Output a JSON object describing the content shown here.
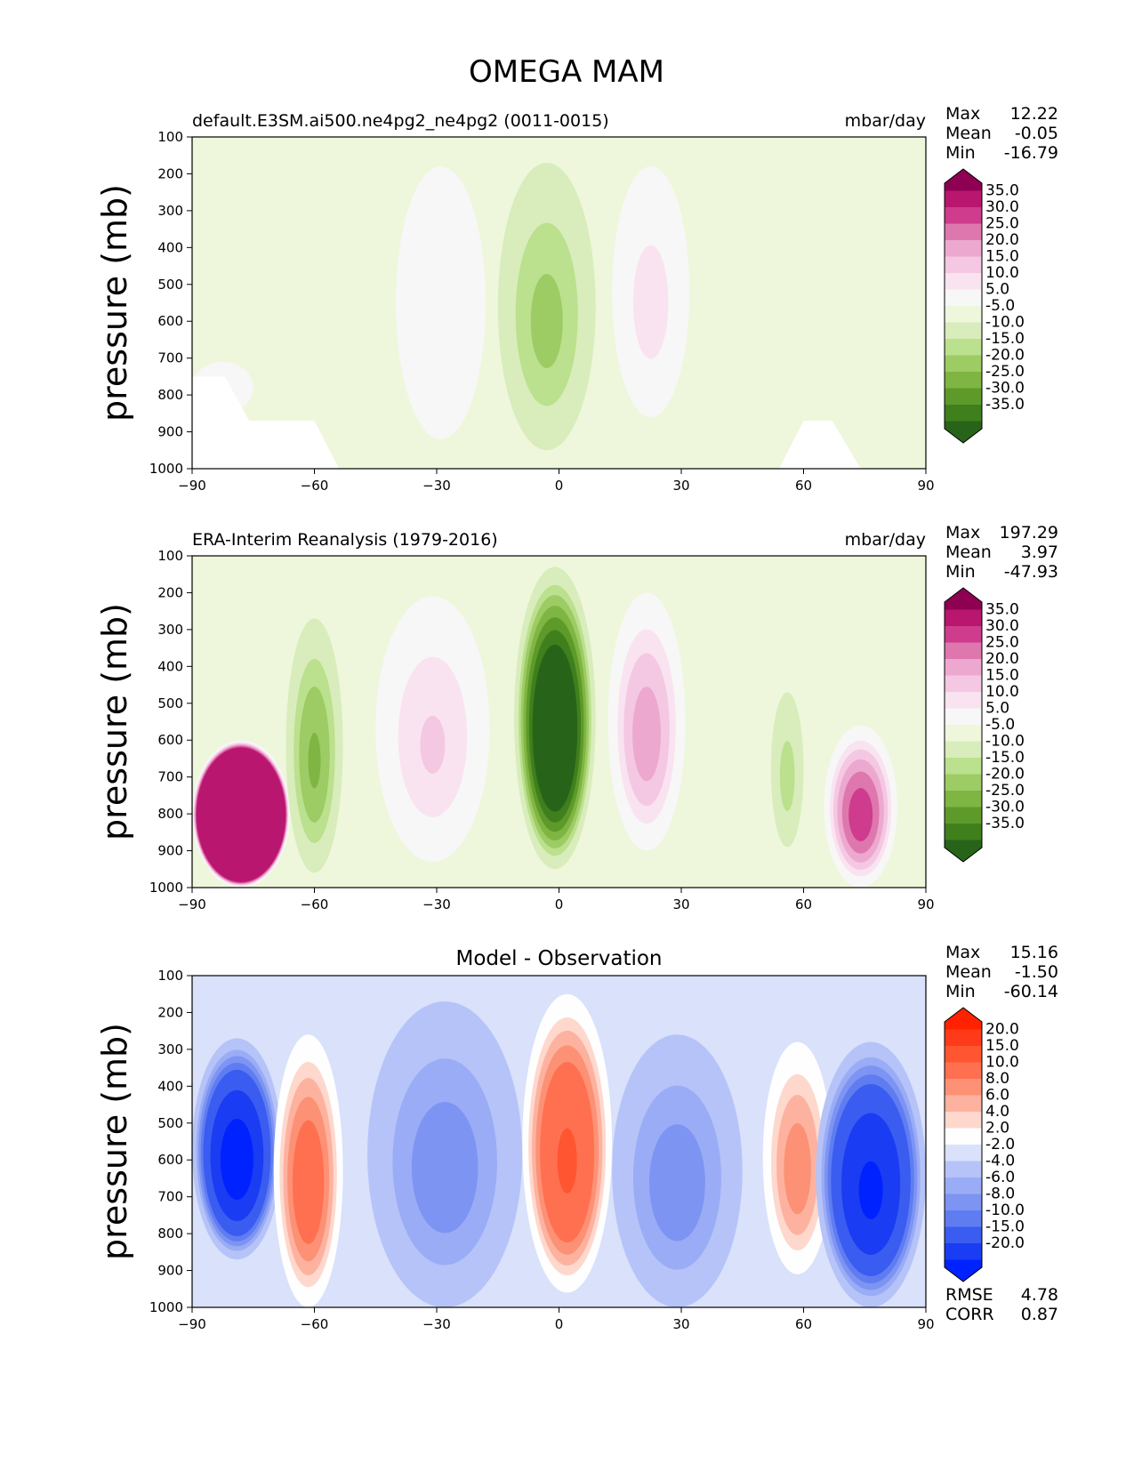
{
  "figure_title": "OMEGA MAM",
  "chart_data": [
    {
      "type": "contour",
      "title": "default.E3SM.ai500.ne4pg2_ne4pg2 (0011-0015)",
      "units": "mbar/day",
      "ylabel": "pressure (mb)",
      "xlim": [
        -90,
        90
      ],
      "ylim": [
        1000,
        100
      ],
      "xticks": [
        "−90",
        "−60",
        "−30",
        "0",
        "30",
        "60",
        "90"
      ],
      "yticks": [
        "100",
        "200",
        "300",
        "400",
        "500",
        "600",
        "700",
        "800",
        "900",
        "1000"
      ],
      "stats": [
        {
          "label": "Max",
          "value": "12.22"
        },
        {
          "label": "Mean",
          "value": "-0.05"
        },
        {
          "label": "Min",
          "value": "-16.79"
        }
      ],
      "colorbar_levels": [
        "35.0",
        "30.0",
        "25.0",
        "20.0",
        "15.0",
        "10.0",
        "5.0",
        "-5.0",
        "-10.0",
        "-15.0",
        "-20.0",
        "-25.0",
        "-30.0",
        "-35.0"
      ],
      "colorbar_colors": [
        "#8e0152",
        "#b8166f",
        "#cf3b8d",
        "#de77ae",
        "#eda8d0",
        "#f4c8e2",
        "#fae3f0",
        "#f7f7f7",
        "#eef7dc",
        "#d8edbb",
        "#bbe08e",
        "#9dcb64",
        "#7fb542",
        "#5e9a2a",
        "#3f7f1c",
        "#276419"
      ],
      "fields": [
        {
          "name": "subsidence-20S",
          "lon_range": [
            -40,
            -18
          ],
          "p_range": [
            180,
            920
          ],
          "peak": 9
        },
        {
          "name": "ascent-equator",
          "lon_range": [
            -15,
            9
          ],
          "p_range": [
            170,
            950
          ],
          "peak": -16
        },
        {
          "name": "subsidence-20N",
          "lon_range": [
            13,
            32
          ],
          "p_range": [
            180,
            860
          ],
          "peak": 12
        },
        {
          "name": "subsidence-SH-high-lat",
          "lon_range": [
            -90,
            -75
          ],
          "p_range": [
            710,
            850
          ],
          "peak": 6
        }
      ],
      "masked_topography": [
        {
          "lon": [
            -90,
            -82,
            -76,
            -60,
            -54
          ],
          "p": [
            750,
            750,
            870,
            870,
            1000
          ]
        },
        {
          "lon": [
            54,
            60,
            67,
            74
          ],
          "p": [
            1000,
            870,
            870,
            1000
          ]
        }
      ]
    },
    {
      "type": "contour",
      "title": "ERA-Interim Reanalysis (1979-2016)",
      "units": "mbar/day",
      "ylabel": "pressure (mb)",
      "xlim": [
        -90,
        90
      ],
      "ylim": [
        1000,
        100
      ],
      "xticks": [
        "−90",
        "−60",
        "−30",
        "0",
        "30",
        "60",
        "90"
      ],
      "yticks": [
        "100",
        "200",
        "300",
        "400",
        "500",
        "600",
        "700",
        "800",
        "900",
        "1000"
      ],
      "stats": [
        {
          "label": "Max",
          "value": "197.29"
        },
        {
          "label": "Mean",
          "value": "3.97"
        },
        {
          "label": "Min",
          "value": "-47.93"
        }
      ],
      "colorbar_levels": [
        "35.0",
        "30.0",
        "25.0",
        "20.0",
        "15.0",
        "10.0",
        "5.0",
        "-5.0",
        "-10.0",
        "-15.0",
        "-20.0",
        "-25.0",
        "-30.0",
        "-35.0"
      ],
      "colorbar_colors": [
        "#8e0152",
        "#b8166f",
        "#cf3b8d",
        "#de77ae",
        "#eda8d0",
        "#f4c8e2",
        "#fae3f0",
        "#f7f7f7",
        "#eef7dc",
        "#d8edbb",
        "#bbe08e",
        "#9dcb64",
        "#7fb542",
        "#5e9a2a",
        "#3f7f1c",
        "#276419"
      ],
      "fields": [
        {
          "name": "antarctic-subsidence",
          "lon_range": [
            -90,
            -66
          ],
          "p_range": [
            600,
            1000
          ],
          "peak": 197
        },
        {
          "name": "ascent-60S",
          "lon_range": [
            -67,
            -53
          ],
          "p_range": [
            270,
            960
          ],
          "peak": -20
        },
        {
          "name": "subsidence-25S",
          "lon_range": [
            -45,
            -17
          ],
          "p_range": [
            210,
            930
          ],
          "peak": 15
        },
        {
          "name": "ascent-equator",
          "lon_range": [
            -11,
            9
          ],
          "p_range": [
            130,
            950
          ],
          "peak": -48
        },
        {
          "name": "subsidence-20N",
          "lon_range": [
            12,
            31
          ],
          "p_range": [
            200,
            900
          ],
          "peak": 22
        },
        {
          "name": "ascent-55N",
          "lon_range": [
            52,
            60
          ],
          "p_range": [
            470,
            890
          ],
          "peak": -12
        },
        {
          "name": "arctic-subsidence",
          "lon_range": [
            65,
            83
          ],
          "p_range": [
            560,
            1000
          ],
          "peak": 32
        }
      ]
    },
    {
      "type": "contour",
      "title": "Model - Observation",
      "ylabel": "pressure (mb)",
      "xlim": [
        -90,
        90
      ],
      "ylim": [
        1000,
        100
      ],
      "xticks": [
        "−90",
        "−60",
        "−30",
        "0",
        "30",
        "60",
        "90"
      ],
      "yticks": [
        "100",
        "200",
        "300",
        "400",
        "500",
        "600",
        "700",
        "800",
        "900",
        "1000"
      ],
      "stats": [
        {
          "label": "Max",
          "value": "15.16"
        },
        {
          "label": "Mean",
          "value": "-1.50"
        },
        {
          "label": "Min",
          "value": "-60.14"
        }
      ],
      "colorbar_levels": [
        "20.0",
        "15.0",
        "10.0",
        "8.0",
        "6.0",
        "4.0",
        "2.0",
        "-2.0",
        "-4.0",
        "-6.0",
        "-8.0",
        "-10.0",
        "-15.0",
        "-20.0"
      ],
      "colorbar_colors": [
        "#ff2200",
        "#ff3a18",
        "#ff5530",
        "#ff7050",
        "#fc9175",
        "#fdb2a0",
        "#fed8cd",
        "#fefefe",
        "#d9e1fb",
        "#b6c3f8",
        "#9aacf5",
        "#7d94f3",
        "#5f7df1",
        "#3a5cf0",
        "#1a3cf2",
        "#0022ff"
      ],
      "fields": [
        {
          "name": "diff-neg-SH-polar",
          "lon_range": [
            -90,
            -68
          ],
          "p_range": [
            270,
            870
          ],
          "peak": -22
        },
        {
          "name": "diff-pos-60S",
          "lon_range": [
            -70,
            -53
          ],
          "p_range": [
            260,
            1000
          ],
          "peak": 12
        },
        {
          "name": "diff-neg-25S",
          "lon_range": [
            -47,
            -9
          ],
          "p_range": [
            170,
            1000
          ],
          "peak": -7
        },
        {
          "name": "diff-pos-equator",
          "lon_range": [
            -9,
            13
          ],
          "p_range": [
            150,
            960
          ],
          "peak": 15
        },
        {
          "name": "diff-neg-25N",
          "lon_range": [
            13,
            45
          ],
          "p_range": [
            260,
            1000
          ],
          "peak": -7
        },
        {
          "name": "diff-pos-55N",
          "lon_range": [
            50,
            67
          ],
          "p_range": [
            280,
            910
          ],
          "peak": 9
        },
        {
          "name": "diff-neg-NH-polar",
          "lon_range": [
            63,
            90
          ],
          "p_range": [
            280,
            1000
          ],
          "peak": -20
        }
      ],
      "metrics": [
        {
          "label": "RMSE",
          "value": "4.78"
        },
        {
          "label": "CORR",
          "value": "0.87"
        }
      ]
    }
  ]
}
